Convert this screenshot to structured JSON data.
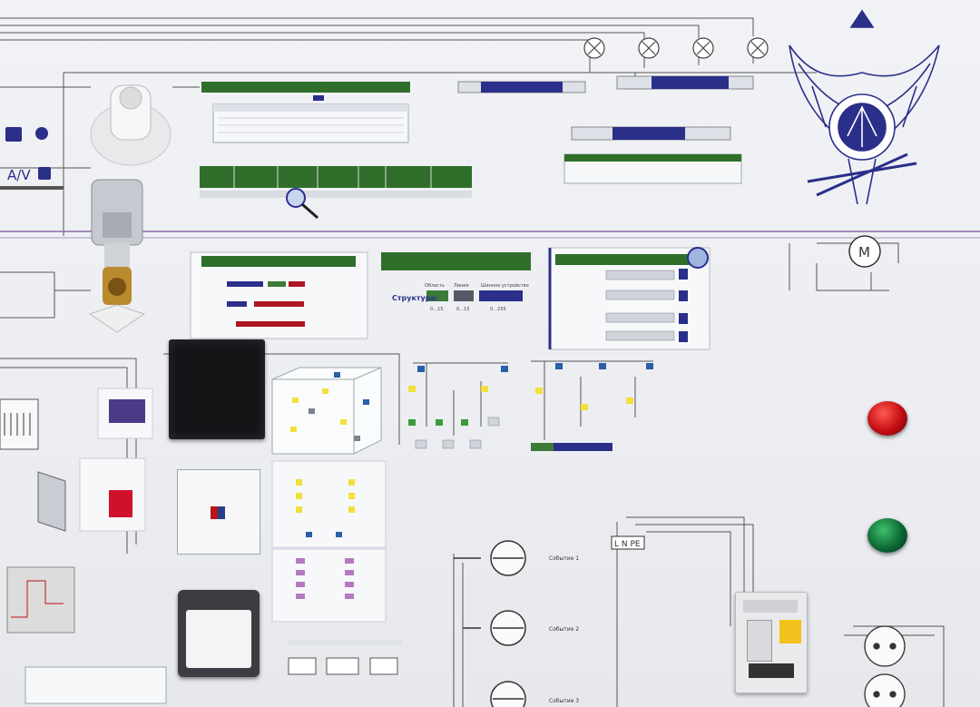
{
  "legend": {
    "av_label": "A/V"
  },
  "structure": {
    "label": "Структура:",
    "area": "Область",
    "line": "Линия",
    "bus_device": "Шинное устройство",
    "range_1": "0…15",
    "range_2": "0…15",
    "range_3": "0…255"
  },
  "events": [
    "Событие 1",
    "Событие 2",
    "Событие 3"
  ],
  "terminal": {
    "label": "L N PE"
  },
  "motor": {
    "label": "M"
  },
  "colors": {
    "panel": "#eceef2",
    "wire": "#4a4a4a",
    "green_block": "#2f6e2b",
    "navy_block": "#2a2f8a",
    "red_lamp": "#d01218",
    "green_lamp": "#0c6a35",
    "emblem": "#2a2f8a"
  }
}
